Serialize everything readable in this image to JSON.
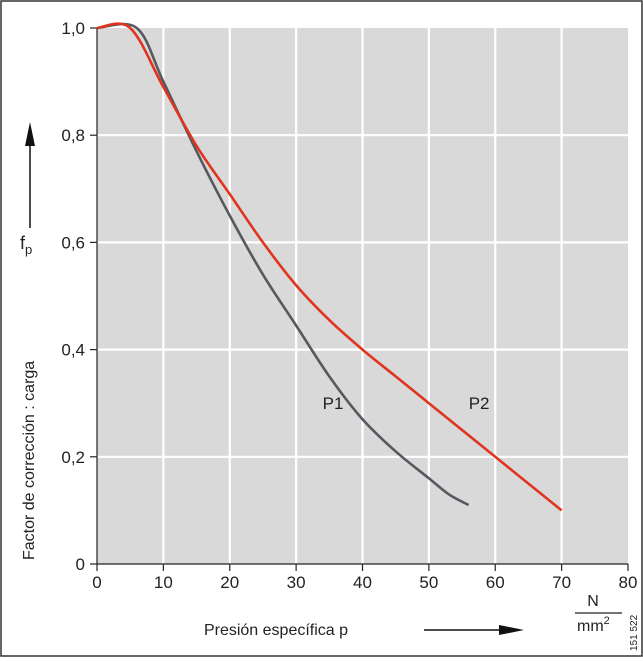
{
  "chart_data": {
    "type": "line",
    "xlabel": "Presión específica p",
    "ylabel": "Factor de corrección : carga",
    "ylabel_symbol": "f",
    "ylabel_subscript": "p",
    "unit_numerator": "N",
    "unit_denominator": "mm",
    "unit_exponent": "2",
    "figure_code": "151 522",
    "xlim": [
      0,
      80
    ],
    "ylim": [
      0,
      1.0
    ],
    "x_ticks": [
      0,
      10,
      20,
      30,
      40,
      50,
      60,
      70,
      80
    ],
    "x_tick_labels": [
      "0",
      "10",
      "20",
      "30",
      "40",
      "50",
      "60",
      "70",
      "80"
    ],
    "y_ticks": [
      0,
      0.2,
      0.4,
      0.6,
      0.8,
      1.0
    ],
    "y_tick_labels": [
      "0",
      "0,2",
      "0,4",
      "0,6",
      "0,8",
      "1,0"
    ],
    "grid": true,
    "series": [
      {
        "name": "P1",
        "color": "#555a60",
        "label_pos": [
          34,
          0.3
        ],
        "x": [
          0,
          6,
          10,
          15,
          20,
          25,
          30,
          35,
          40,
          45,
          50,
          53,
          56
        ],
        "y": [
          1.0,
          1.0,
          0.9,
          0.77,
          0.65,
          0.54,
          0.445,
          0.35,
          0.27,
          0.21,
          0.16,
          0.13,
          0.11
        ]
      },
      {
        "name": "P2",
        "color": "#e0341e",
        "label_pos": [
          56,
          0.3
        ],
        "x": [
          0,
          5,
          10,
          15,
          20,
          25,
          30,
          35,
          40,
          45,
          50,
          55,
          60,
          65,
          70
        ],
        "y": [
          1.0,
          1.0,
          0.89,
          0.78,
          0.69,
          0.6,
          0.52,
          0.455,
          0.4,
          0.35,
          0.3,
          0.25,
          0.2,
          0.15,
          0.1
        ]
      }
    ]
  }
}
